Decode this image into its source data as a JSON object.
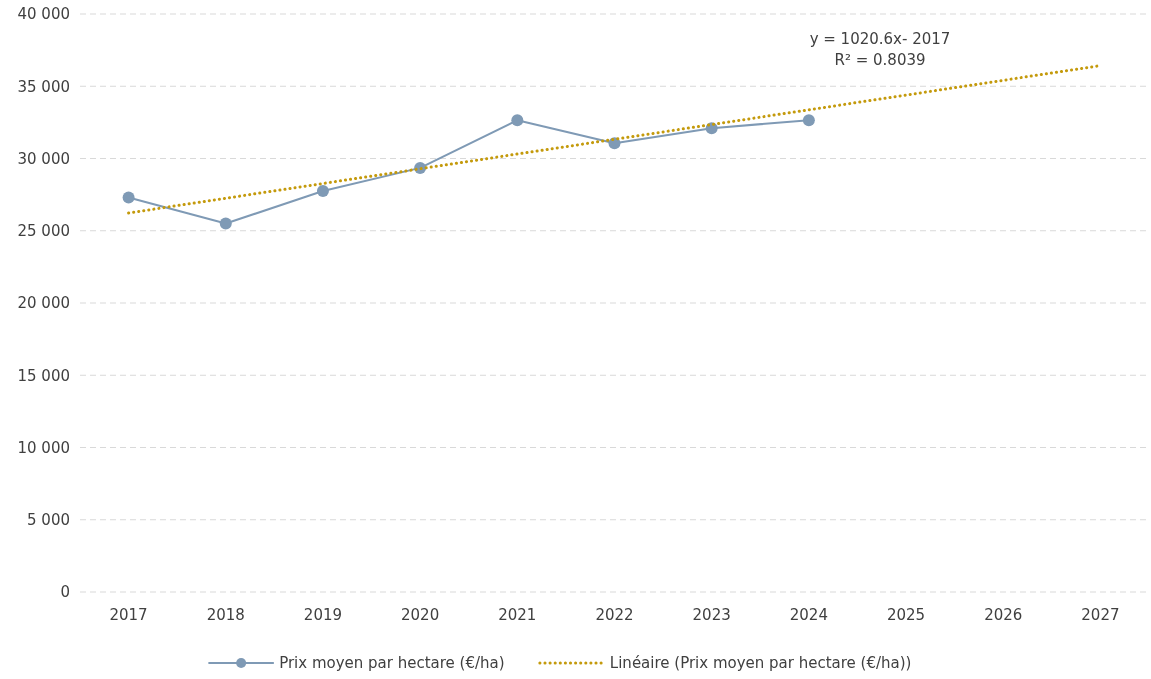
{
  "chart_data": {
    "type": "line",
    "categories": [
      "2017",
      "2018",
      "2019",
      "2020",
      "2021",
      "2022",
      "2023",
      "2024",
      "2025",
      "2026",
      "2027"
    ],
    "series": [
      {
        "name": "Prix moyen par hectare (€/ha)",
        "color": "#7f9ab5",
        "marker": "circle",
        "line_style": "solid",
        "values": [
          27300,
          25500,
          27750,
          29350,
          32650,
          31050,
          32100,
          32650,
          null,
          null,
          null
        ]
      },
      {
        "name": "Linéaire (Prix moyen par hectare (€/ha))",
        "color": "#c49a0c",
        "marker": "none",
        "line_style": "dotted",
        "values": [
          26230,
          27250,
          28270,
          29290,
          30310,
          31330,
          32350,
          33370,
          34390,
          35410,
          36430
        ]
      }
    ],
    "ylim": [
      0,
      40000
    ],
    "yticks": [
      {
        "value": 0,
        "label": "0"
      },
      {
        "value": 5000,
        "label": "5 000"
      },
      {
        "value": 10000,
        "label": "10 000"
      },
      {
        "value": 15000,
        "label": "15 000"
      },
      {
        "value": 20000,
        "label": "20 000"
      },
      {
        "value": 25000,
        "label": "25 000"
      },
      {
        "value": 30000,
        "label": "30 000"
      },
      {
        "value": 35000,
        "label": "35 000"
      },
      {
        "value": 40000,
        "label": "40 000"
      }
    ],
    "grid": "y",
    "legend": "bottom",
    "annotations": [
      "y = 1020.6x- 2017",
      "R² = 0.8039"
    ]
  }
}
